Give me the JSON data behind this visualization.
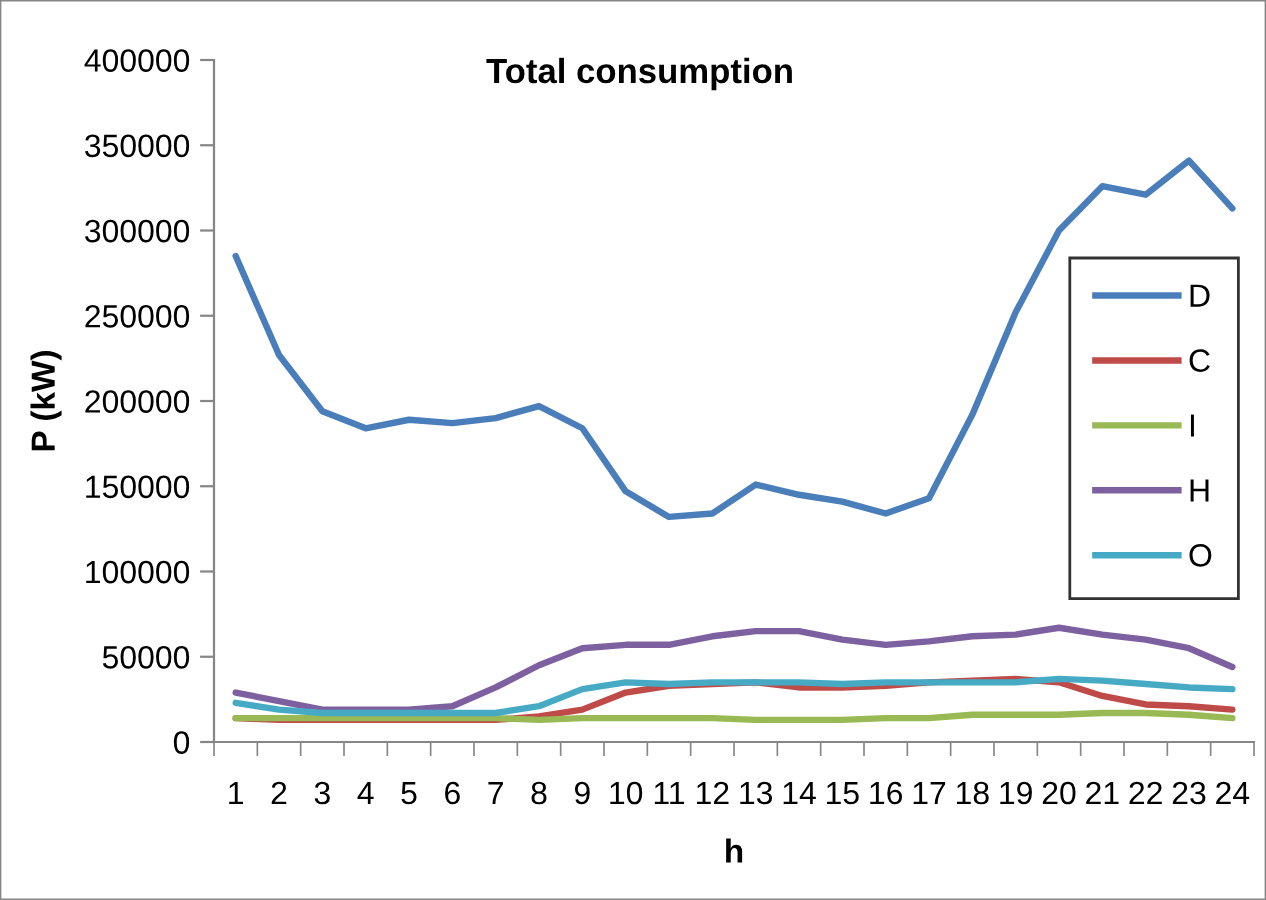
{
  "chart_data": {
    "type": "line",
    "title": "Total consumption",
    "xlabel": "h",
    "ylabel": "P (kW)",
    "categories": [
      "1",
      "2",
      "3",
      "4",
      "5",
      "6",
      "7",
      "8",
      "9",
      "10",
      "11",
      "12",
      "13",
      "14",
      "15",
      "16",
      "17",
      "18",
      "19",
      "20",
      "21",
      "22",
      "23",
      "24"
    ],
    "series": [
      {
        "name": "D",
        "color": "#4a7ebb",
        "values": [
          285000,
          227000,
          194000,
          184000,
          189000,
          187000,
          190000,
          197000,
          184000,
          147000,
          132000,
          134000,
          151000,
          145000,
          141000,
          134000,
          143000,
          192000,
          252000,
          300000,
          326000,
          321000,
          341000,
          313000
        ]
      },
      {
        "name": "C",
        "color": "#be4b48",
        "values": [
          14000,
          13000,
          13000,
          13000,
          13000,
          13000,
          13000,
          15000,
          19000,
          29000,
          33000,
          34000,
          35000,
          32000,
          32000,
          33000,
          35000,
          36000,
          37000,
          35000,
          27000,
          22000,
          21000,
          19000
        ]
      },
      {
        "name": "I",
        "color": "#98b954",
        "values": [
          14000,
          14000,
          14000,
          14000,
          14000,
          14000,
          14000,
          13000,
          14000,
          14000,
          14000,
          14000,
          13000,
          13000,
          13000,
          14000,
          14000,
          16000,
          16000,
          16000,
          17000,
          17000,
          16000,
          14000
        ]
      },
      {
        "name": "H",
        "color": "#7d60a0",
        "values": [
          29000,
          24000,
          19000,
          19000,
          19000,
          21000,
          32000,
          45000,
          55000,
          57000,
          57000,
          62000,
          65000,
          65000,
          60000,
          57000,
          59000,
          62000,
          63000,
          67000,
          63000,
          60000,
          55000,
          44000
        ]
      },
      {
        "name": "O",
        "color": "#46aac5",
        "values": [
          23000,
          19000,
          17000,
          17000,
          17000,
          17000,
          17000,
          21000,
          31000,
          35000,
          34000,
          35000,
          35000,
          35000,
          34000,
          35000,
          35000,
          35000,
          35000,
          37000,
          36000,
          34000,
          32000,
          31000
        ]
      }
    ],
    "ylim": [
      0,
      400000
    ],
    "yticks": [
      0,
      50000,
      100000,
      150000,
      200000,
      250000,
      300000,
      350000,
      400000
    ],
    "grid": false,
    "legend": "right",
    "marker": "none",
    "line_style": "solid"
  }
}
